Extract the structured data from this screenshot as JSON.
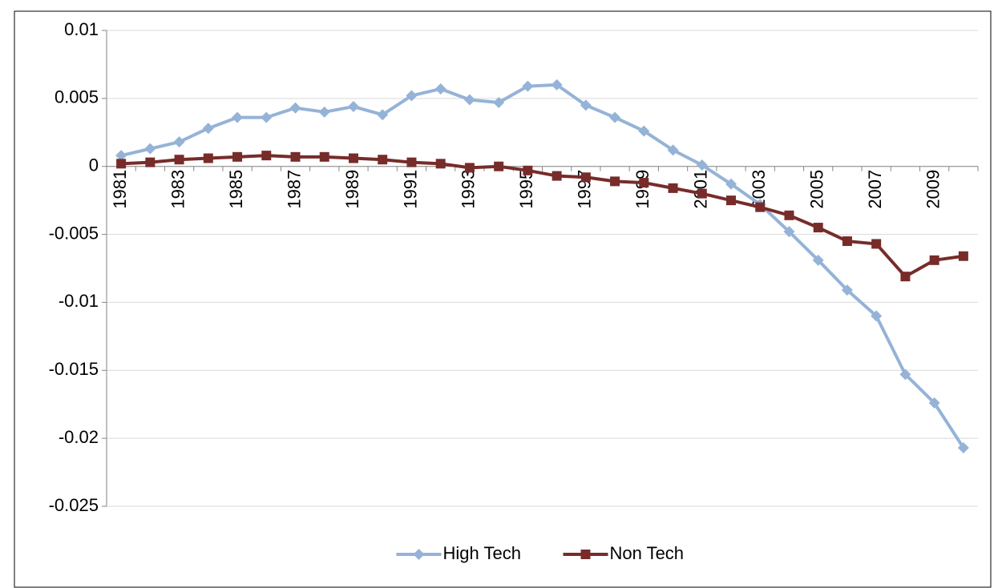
{
  "chart_data": {
    "type": "line",
    "categories": [
      "1981",
      null,
      "1983",
      null,
      "1985",
      null,
      "1987",
      null,
      "1989",
      null,
      "1991",
      null,
      "1993",
      null,
      "1995",
      null,
      "1997",
      null,
      "1999",
      null,
      "2001",
      null,
      "2003",
      null,
      "2005",
      null,
      "2007",
      null,
      "2009",
      null
    ],
    "series": [
      {
        "name": "High Tech",
        "color": "#95b3d7",
        "marker": "diamond",
        "values": [
          0.0008,
          0.0013,
          0.0018,
          0.0028,
          0.0036,
          0.0036,
          0.0043,
          0.004,
          0.0044,
          0.0038,
          0.0052,
          0.0057,
          0.0049,
          0.0047,
          0.0059,
          0.006,
          0.0045,
          0.0036,
          0.0026,
          0.0012,
          0.0001,
          -0.0013,
          -0.0028,
          -0.0048,
          -0.0069,
          -0.0091,
          -0.011,
          -0.0153,
          -0.0174,
          -0.0207
        ]
      },
      {
        "name": "Non Tech",
        "color": "#772c2a",
        "marker": "square",
        "values": [
          0.0002,
          0.0003,
          0.0005,
          0.0006,
          0.0007,
          0.0008,
          0.0007,
          0.0007,
          0.0006,
          0.0005,
          0.0003,
          0.0002,
          -0.0001,
          0,
          -0.0003,
          -0.0007,
          -0.0008,
          -0.0011,
          -0.0012,
          -0.0016,
          -0.002,
          -0.0025,
          -0.003,
          -0.0036,
          -0.0045,
          -0.0055,
          -0.0057,
          -0.0081,
          -0.0069,
          -0.0066
        ]
      }
    ],
    "ylim": [
      -0.025,
      0.01
    ],
    "yticks": [
      -0.025,
      -0.02,
      -0.015,
      -0.01,
      -0.005,
      0,
      0.005,
      0.01
    ],
    "grid": true,
    "legend": "bottom"
  }
}
